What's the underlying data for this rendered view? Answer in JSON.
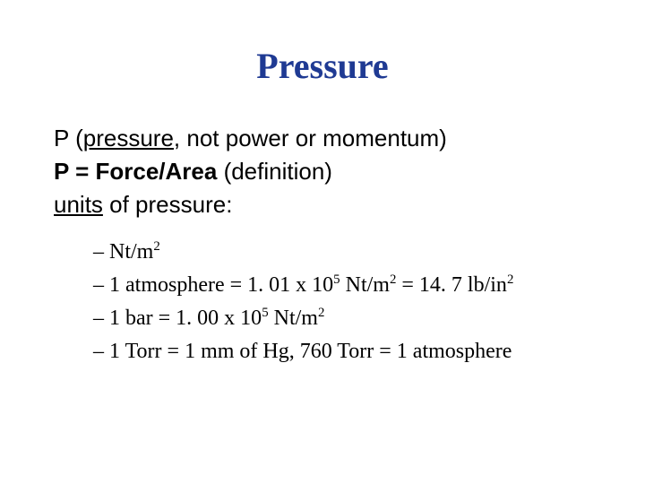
{
  "title": "Pressure",
  "line1_pre": "P (",
  "line1_underlined": "pressure",
  "line1_post": ", not power or momentum)",
  "line2_bold": "P = Force/Area",
  "line2_post": "  (definition)",
  "line3_under": "units",
  "line3_post": " of pressure:",
  "b1_pre": "Nt/m",
  "sup2": "2",
  "b2_a": "1 atmosphere  =  1. 01 x 10",
  "sup5": "5",
  "b2_b": " Nt/m",
  "b2_c": "  =  14. 7 lb/in",
  "b3_a": "1 bar = 1. 00 x 10",
  "b3_b": " Nt/m",
  "b4": "1 Torr = 1 mm of Hg,  760 Torr = 1 atmosphere",
  "dash": "–",
  "colors": {
    "title": "#1f3a93",
    "text": "#000000",
    "bg": "#ffffff"
  },
  "fontsizes": {
    "title": 40,
    "body": 26,
    "bullet": 24
  }
}
